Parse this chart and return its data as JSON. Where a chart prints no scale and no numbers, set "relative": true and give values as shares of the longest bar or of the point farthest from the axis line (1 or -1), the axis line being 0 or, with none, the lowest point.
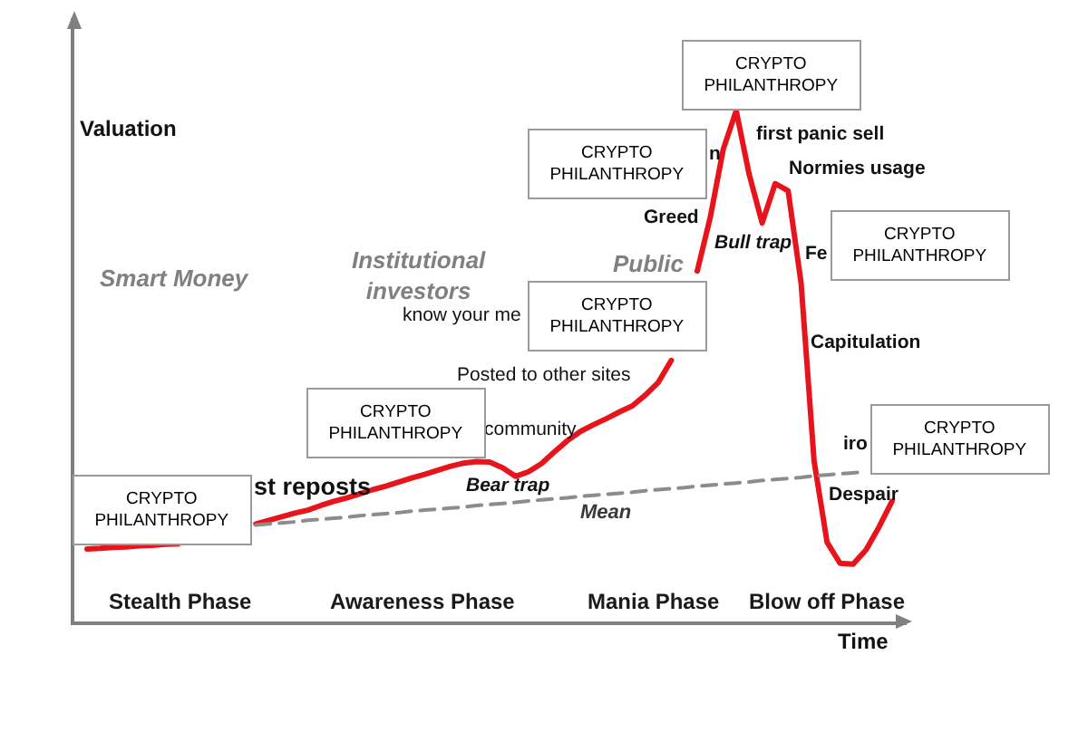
{
  "chart_data": {
    "type": "line",
    "relative": true,
    "xlabel": "Time",
    "ylabel": "Valuation",
    "categories": [
      null,
      null,
      null,
      null,
      null,
      null,
      null,
      null,
      null,
      null,
      null,
      null,
      null,
      null,
      null,
      null,
      null,
      null,
      null,
      null,
      null,
      null,
      null,
      null,
      null,
      null,
      null,
      null,
      null,
      null,
      null,
      null,
      null,
      null,
      null,
      null,
      null,
      null,
      null,
      null,
      null,
      null,
      null,
      null,
      null,
      null,
      null,
      null,
      null,
      null,
      null,
      null,
      null,
      null,
      null,
      null,
      null,
      null,
      null,
      null,
      null,
      null,
      null
    ],
    "series": [
      {
        "color": "#e8141c",
        "values": [
          0.142,
          0.143,
          0.145,
          0.146,
          0.148,
          0.149,
          0.151,
          0.152,
          null,
          null,
          null,
          null,
          null,
          0.191,
          0.198,
          0.205,
          0.212,
          0.218,
          0.227,
          0.235,
          0.242,
          0.25,
          0.258,
          0.265,
          0.273,
          0.281,
          0.288,
          0.296,
          0.304,
          0.31,
          0.313,
          0.312,
          0.301,
          0.284,
          0.293,
          0.309,
          0.332,
          0.354,
          0.372,
          0.385,
          0.397,
          0.41,
          0.422,
          0.443,
          0.468,
          0.511,
          null,
          0.686,
          0.791,
          0.924,
          1,
          0.875,
          0.78,
          0.857,
          0.843,
          0.662,
          0.314,
          0.155,
          0.114,
          0.112,
          0.14,
          0.185,
          0.235
        ]
      },
      {
        "name": "Mean",
        "color": "#8c8c8c",
        "line_style": "dashed",
        "values": [
          null,
          null,
          null,
          null,
          null,
          null,
          null,
          null,
          null,
          null,
          null,
          null,
          null,
          0.189,
          0.191,
          0.193,
          0.195,
          0.198,
          0.2,
          0.202,
          0.204,
          0.207,
          0.209,
          0.211,
          0.213,
          0.216,
          0.218,
          0.22,
          0.222,
          0.224,
          0.227,
          0.229,
          0.231,
          0.233,
          0.236,
          0.238,
          0.24,
          0.242,
          0.245,
          0.247,
          0.249,
          0.251,
          0.253,
          0.256,
          0.258,
          0.26,
          0.262,
          0.265,
          0.267,
          0.269,
          0.271,
          0.273,
          0.276,
          0.278,
          0.28,
          0.282,
          0.285,
          0.287,
          0.289,
          0.291,
          0.293,
          null,
          null
        ]
      }
    ],
    "annotations": [
      "Smart Money",
      "Institutional\ninvestors",
      "Public",
      "Stealth Phase",
      "Awareness Phase",
      "Mania Phase",
      "Blow off Phase",
      "st reposts",
      "know your me",
      "Posted to other sites",
      "community",
      "Bear trap",
      "Greed",
      "n",
      "first panic sell",
      "Normies usage",
      "Bull trap",
      "Fe",
      "Capitulation",
      "iro",
      "Despair",
      "CRYPTO\nPHILANTHROPY",
      "CRYPTO\nPHILANTHROPY",
      "CRYPTO\nPHILANTHROPY",
      "CRYPTO\nPHILANTHROPY",
      "CRYPTO\nPHILANTHROPY",
      "CRYPTO\nPHILANTHROPY",
      "CRYPTO\nPHILANTHROPY"
    ]
  }
}
